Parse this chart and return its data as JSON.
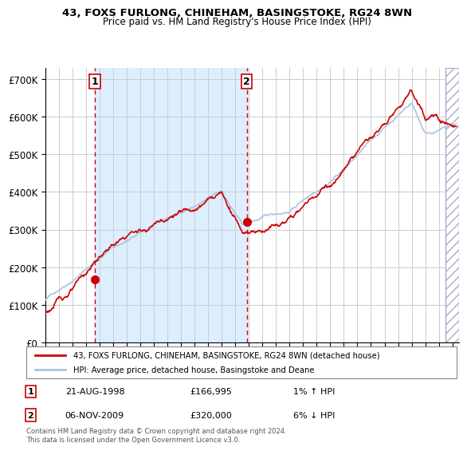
{
  "title1": "43, FOXS FURLONG, CHINEHAM, BASINGSTOKE, RG24 8WN",
  "title2": "Price paid vs. HM Land Registry's House Price Index (HPI)",
  "ylabel_ticks": [
    "£0",
    "£100K",
    "£200K",
    "£300K",
    "£400K",
    "£500K",
    "£600K",
    "£700K"
  ],
  "ytick_values": [
    0,
    100000,
    200000,
    300000,
    400000,
    500000,
    600000,
    700000
  ],
  "ylim": [
    0,
    730000
  ],
  "xlim_start": 1995.0,
  "xlim_end": 2025.5,
  "marker1_x": 1998.64,
  "marker1_y": 166995,
  "marker2_x": 2009.84,
  "marker2_y": 320000,
  "vline1_x": 1998.64,
  "vline2_x": 2009.84,
  "shade_start": 1998.64,
  "shade_end": 2009.84,
  "legend_line1": "43, FOXS FURLONG, CHINEHAM, BASINGSTOKE, RG24 8WN (detached house)",
  "legend_line2": "HPI: Average price, detached house, Basingstoke and Deane",
  "annotation1_num": "1",
  "annotation2_num": "2",
  "ann1_date": "21-AUG-1998",
  "ann1_price": "£166,995",
  "ann1_hpi": "1% ↑ HPI",
  "ann2_date": "06-NOV-2009",
  "ann2_price": "£320,000",
  "ann2_hpi": "6% ↓ HPI",
  "footer": "Contains HM Land Registry data © Crown copyright and database right 2024.\nThis data is licensed under the Open Government Licence v3.0.",
  "hpi_color": "#aac4e0",
  "price_color": "#cc0000",
  "bg_shade_color": "#ddeeff",
  "hatch_color": "#aaaacc",
  "grid_color": "#cccccc"
}
